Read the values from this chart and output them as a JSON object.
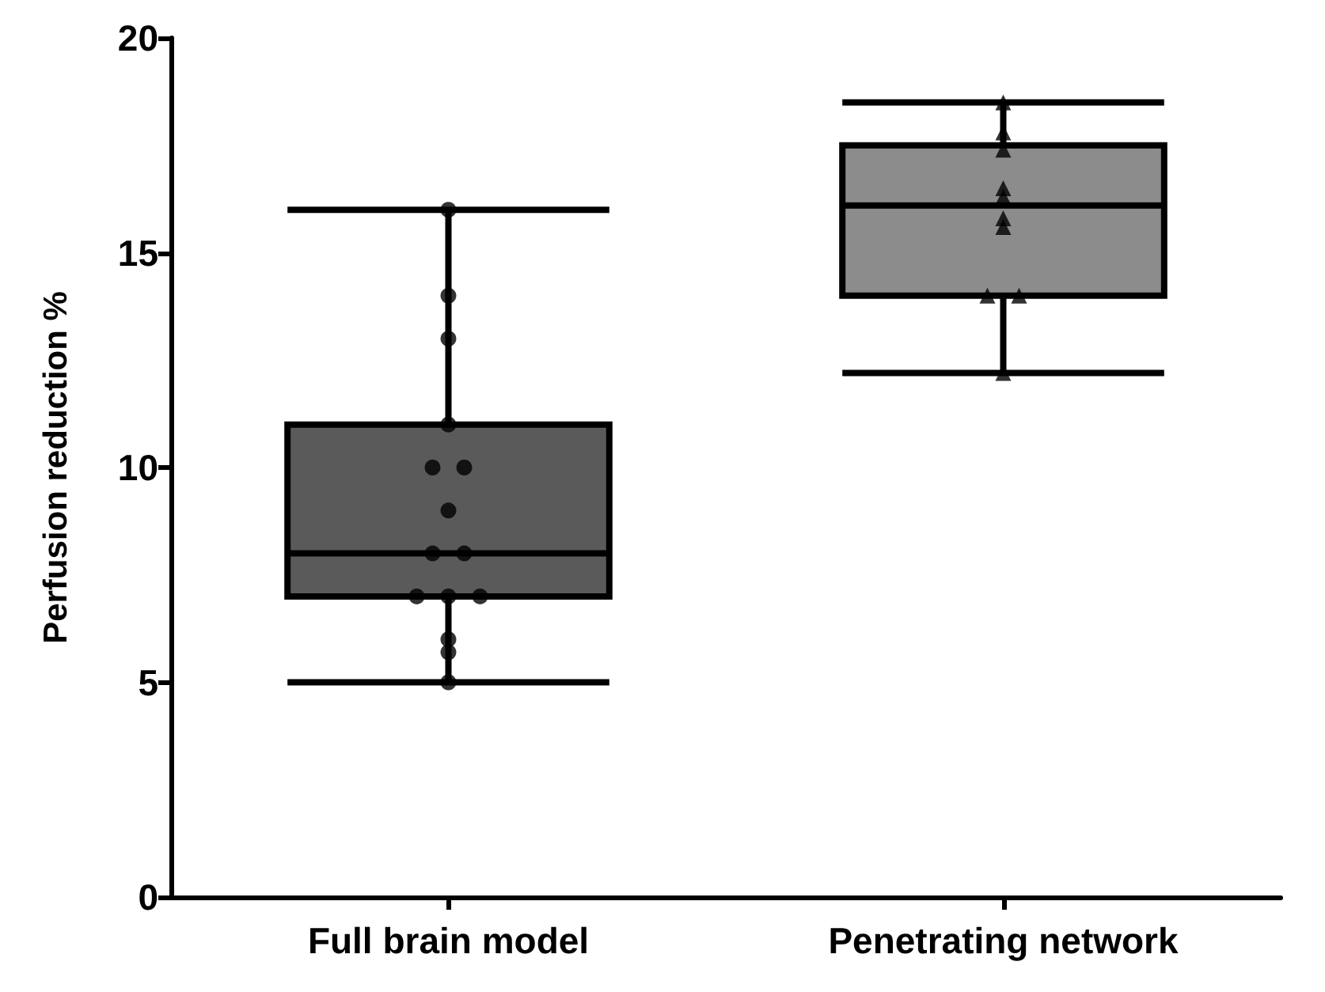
{
  "chart_data": {
    "type": "box",
    "ylabel": "Perfusion reduction %",
    "categories": [
      "Full brain model",
      "Penetrating network"
    ],
    "ylim": [
      0,
      20
    ],
    "yticks": [
      0,
      5,
      10,
      15,
      20
    ],
    "grid": false,
    "series": [
      {
        "colors": [
          "#5a5a5a",
          "#8c8c8c"
        ],
        "boxes": [
          {
            "low": 5,
            "q1": 7,
            "median": 8,
            "q3": 11,
            "high": 16
          },
          {
            "low": 12.2,
            "q1": 14,
            "median": 16.1,
            "q3": 17.5,
            "high": 18.5
          }
        ]
      },
      {
        "type": "scatter",
        "marker": "circle",
        "color": "#000000",
        "x": [
          "Full brain model",
          "Full brain model",
          "Full brain model",
          "Full brain model",
          "Full brain model",
          "Full brain model",
          "Full brain model",
          "Full brain model",
          "Full brain model",
          "Full brain model",
          "Full brain model",
          "Full brain model",
          "Full brain model",
          "Full brain model",
          "Full brain model"
        ],
        "values": [
          16,
          14,
          13,
          11,
          10,
          10,
          9,
          8,
          8,
          7,
          7,
          7,
          6,
          5.7,
          5
        ]
      },
      {
        "type": "scatter",
        "marker": "triangle",
        "color": "#000000",
        "x": [
          "Penetrating network",
          "Penetrating network",
          "Penetrating network",
          "Penetrating network",
          "Penetrating network",
          "Penetrating network",
          "Penetrating network",
          "Penetrating network",
          "Penetrating network",
          "Penetrating network"
        ],
        "values": [
          18.5,
          17.8,
          17.4,
          16.5,
          16.3,
          15.8,
          15.6,
          14,
          14,
          12.2
        ]
      }
    ]
  }
}
